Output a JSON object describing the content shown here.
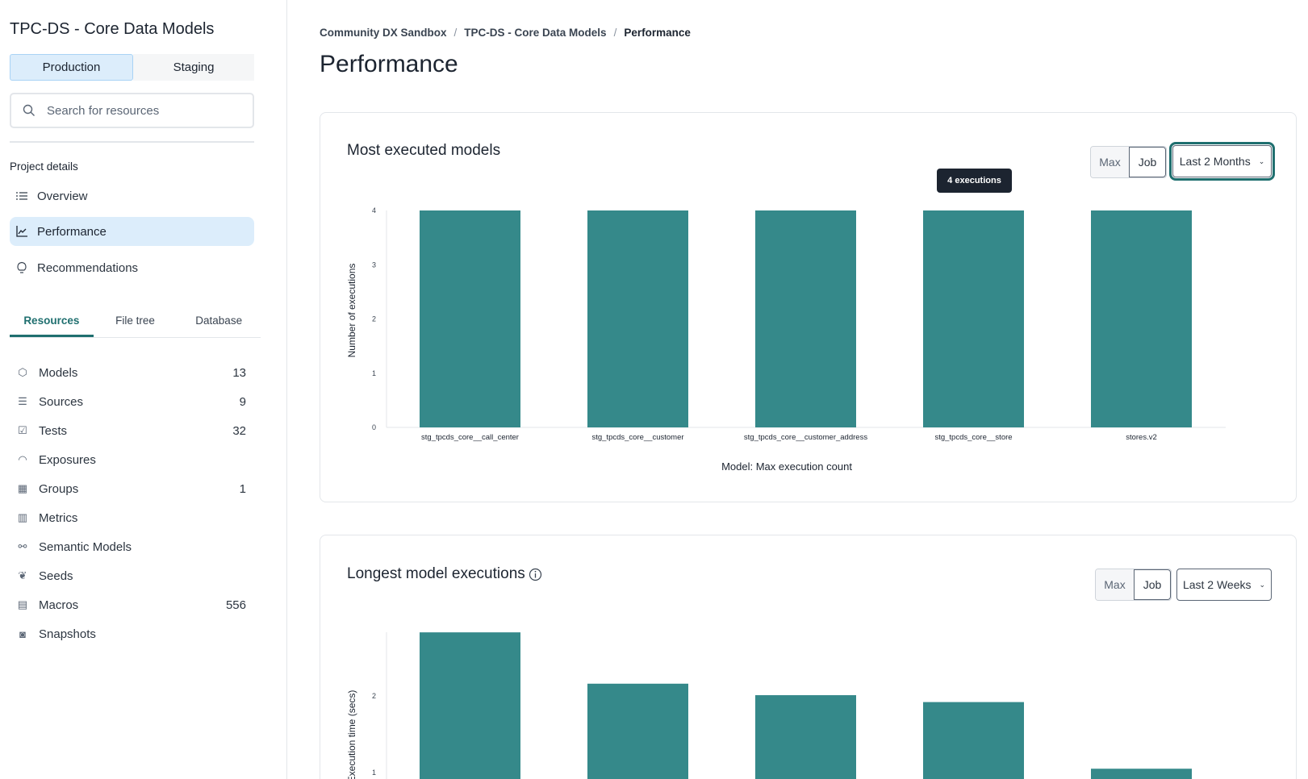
{
  "sidebar": {
    "project_title": "TPC-DS - Core Data Models",
    "env_tabs": [
      "Production",
      "Staging"
    ],
    "search_placeholder": "Search for resources",
    "section_label": "Project details",
    "nav": [
      {
        "label": "Overview",
        "icon": "list-icon"
      },
      {
        "label": "Performance",
        "icon": "chart-line-icon",
        "active": true
      },
      {
        "label": "Recommendations",
        "icon": "lightbulb-icon"
      }
    ],
    "resource_tabs": [
      "Resources",
      "File tree",
      "Database"
    ],
    "resources": [
      {
        "label": "Models",
        "count": "13",
        "icon": "cube-icon"
      },
      {
        "label": "Sources",
        "count": "9",
        "icon": "database-icon"
      },
      {
        "label": "Tests",
        "count": "32",
        "icon": "clipboard-check-icon"
      },
      {
        "label": "Exposures",
        "count": "",
        "icon": "gauge-icon"
      },
      {
        "label": "Groups",
        "count": "1",
        "icon": "grid-icon"
      },
      {
        "label": "Metrics",
        "count": "",
        "icon": "bar-chart-icon"
      },
      {
        "label": "Semantic Models",
        "count": "",
        "icon": "nodes-icon"
      },
      {
        "label": "Seeds",
        "count": "",
        "icon": "sprout-icon"
      },
      {
        "label": "Macros",
        "count": "556",
        "icon": "document-icon"
      },
      {
        "label": "Snapshots",
        "count": "",
        "icon": "camera-icon"
      }
    ]
  },
  "breadcrumb": [
    "Community DX Sandbox",
    "TPC-DS - Core Data Models",
    "Performance"
  ],
  "page_title": "Performance",
  "accent": "#35898a",
  "cards": [
    {
      "title": "Most executed models",
      "toggle": [
        "Max",
        "Job"
      ],
      "range": "Last 2 Months",
      "tooltip": "4 executions"
    },
    {
      "title": "Longest model executions",
      "toggle": [
        "Max",
        "Job"
      ],
      "range": "Last 2 Weeks"
    }
  ],
  "chart_data": [
    {
      "type": "bar",
      "xlabel": "Model: Max execution count",
      "ylabel": "Number of executions",
      "categories": [
        "stg_tpcds_core__call_center",
        "stg_tpcds_core__customer",
        "stg_tpcds_core__customer_address",
        "stg_tpcds_core__store",
        "stores.v2"
      ],
      "values": [
        4,
        4,
        4,
        4,
        4
      ],
      "ylim": [
        0,
        4
      ],
      "yticks": [
        "0",
        "1",
        "2",
        "3",
        "4"
      ],
      "grid": false
    },
    {
      "type": "bar",
      "ylabel": "Execution time (secs)",
      "values": [
        2.83,
        2.16,
        2.01,
        1.92,
        1.05
      ],
      "yticks": [
        "1",
        "2"
      ],
      "grid": false
    }
  ]
}
